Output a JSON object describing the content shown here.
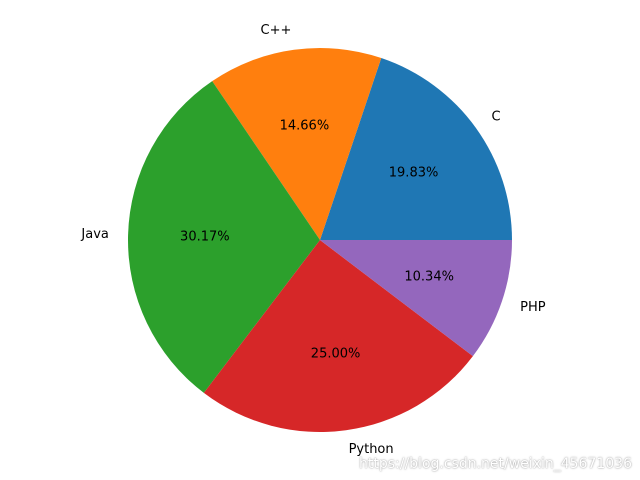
{
  "chart_data": {
    "type": "pie",
    "categories": [
      "C",
      "C++",
      "Java",
      "Python",
      "PHP"
    ],
    "values": [
      19.83,
      14.66,
      30.17,
      25.0,
      10.34
    ],
    "labels_percent": [
      "19.83%",
      "14.66%",
      "30.17%",
      "25.00%",
      "10.34%"
    ],
    "colors": [
      "#1f77b4",
      "#ff7f0e",
      "#2ca02c",
      "#d62728",
      "#9467bd"
    ],
    "start_angle_deg": 0,
    "direction": "counterclockwise",
    "title": "",
    "legend": "none"
  },
  "watermark": "https://blog.csdn.net/weixin_45671036"
}
